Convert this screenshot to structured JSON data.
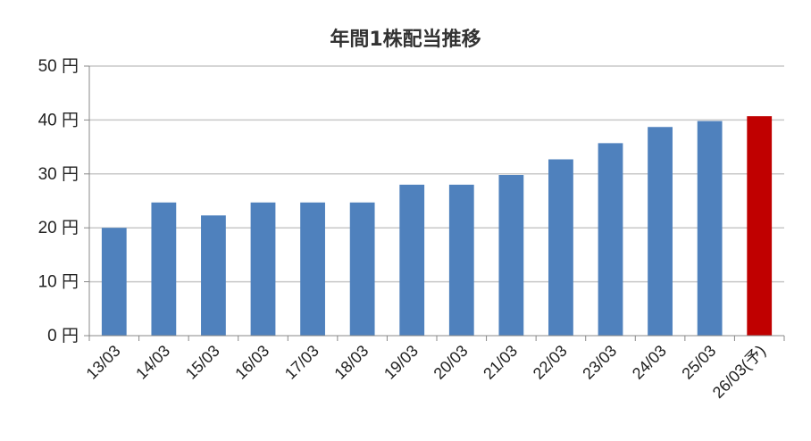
{
  "chart_data": {
    "type": "bar",
    "title": "年間1株配当推移",
    "xlabel": "",
    "ylabel": "",
    "ylim": [
      0,
      50
    ],
    "yticks": [
      0,
      10,
      20,
      30,
      40,
      50
    ],
    "ytick_labels": [
      "0 円",
      "10 円",
      "20 円",
      "30 円",
      "40 円",
      "50 円"
    ],
    "grid": true,
    "legend": "none",
    "categories": [
      "13/03",
      "14/03",
      "15/03",
      "16/03",
      "17/03",
      "18/03",
      "19/03",
      "20/03",
      "21/03",
      "22/03",
      "23/03",
      "24/03",
      "25/03",
      "26/03(予)"
    ],
    "values": [
      20,
      24.7,
      22.3,
      24.7,
      24.7,
      24.7,
      28,
      28,
      29.8,
      32.7,
      35.7,
      38.7,
      39.8,
      40.7
    ],
    "colors": {
      "actual": "#4f81bd",
      "forecast": "#c00000",
      "grid": "#c8c8c8",
      "axis": "#888888"
    },
    "forecast_category": "26/03(予)"
  }
}
